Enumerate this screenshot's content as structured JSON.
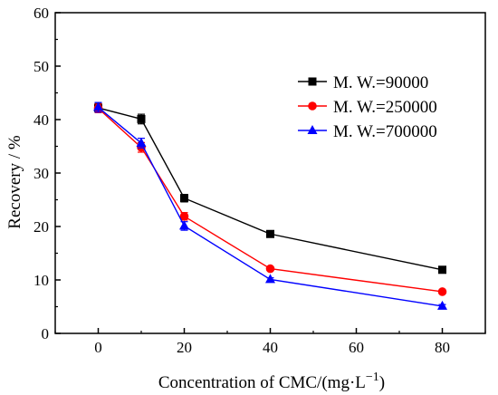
{
  "chart_data": {
    "type": "line",
    "xlabel": "Concentration of CMC/(mg·L",
    "xlabel_exponent": "−1",
    "xlabel_suffix": ")",
    "ylabel": "Recovery / %",
    "xlim": [
      -10,
      90
    ],
    "ylim": [
      0,
      60
    ],
    "xticks": [
      0,
      20,
      40,
      60,
      80
    ],
    "yticks": [
      0,
      10,
      20,
      30,
      40,
      50,
      60
    ],
    "grid": false,
    "legend_position": "top-right",
    "x": [
      0,
      10,
      20,
      40,
      80
    ],
    "series": [
      {
        "name": "M. W.=90000",
        "color": "#000000",
        "marker": "square",
        "values": [
          42.2,
          40.1,
          25.3,
          18.6,
          11.9
        ],
        "errors": [
          0.8,
          0.9,
          0.7,
          0.3,
          0.3
        ]
      },
      {
        "name": "M. W.=250000",
        "color": "#ff0000",
        "marker": "circle",
        "values": [
          42.1,
          34.8,
          21.9,
          12.1,
          7.8
        ],
        "errors": [
          0.8,
          0.9,
          0.7,
          0.3,
          0.3
        ]
      },
      {
        "name": "M. W.=700000",
        "color": "#0000ff",
        "marker": "triangle",
        "values": [
          42.3,
          35.6,
          20.1,
          10.1,
          5.1
        ],
        "errors": [
          0.9,
          0.9,
          0.8,
          0.3,
          0.3
        ]
      }
    ]
  }
}
